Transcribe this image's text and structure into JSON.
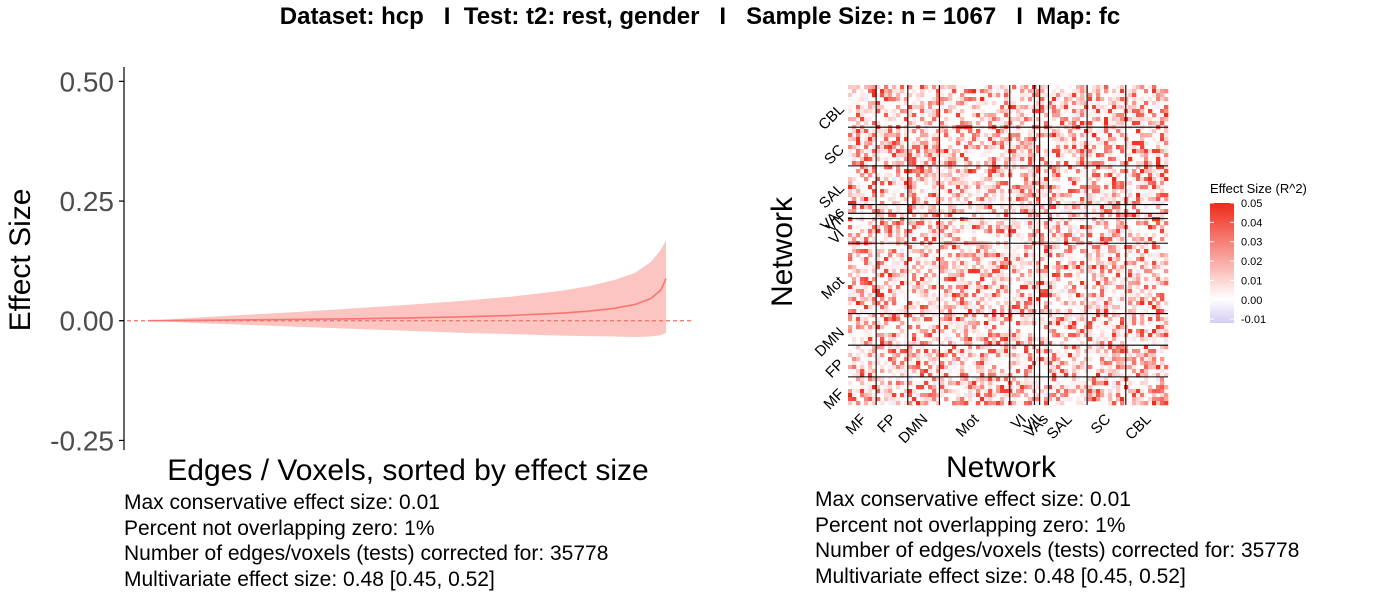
{
  "header": {
    "title": "Dataset: hcp   I  Test: t2: rest, gender   I   Sample Size: n = 1067   I  Map: fc"
  },
  "chart_data": [
    {
      "type": "area",
      "title": "",
      "xlabel": "Edges / Voxels, sorted by effect size",
      "ylabel": "Effect Size",
      "ylim": [
        -0.27,
        0.53
      ],
      "yticks": [
        {
          "value": 0.5,
          "label": "0.50"
        },
        {
          "value": 0.25,
          "label": "0.25"
        },
        {
          "value": 0.0,
          "label": "0.00"
        },
        {
          "value": -0.25,
          "label": "-0.25"
        }
      ],
      "reference_line": {
        "value": 0.0,
        "style": "dashed",
        "color": "#e8736b"
      },
      "colors": {
        "line": "#f8766d",
        "band": "#fcc5c1"
      },
      "x": [
        0,
        0.1,
        0.2,
        0.3,
        0.4,
        0.5,
        0.6,
        0.7,
        0.8,
        0.85,
        0.9,
        0.94,
        0.97,
        0.99,
        1.0
      ],
      "series": [
        {
          "values": [
            0.0,
            0.001,
            0.002,
            0.003,
            0.004,
            0.006,
            0.008,
            0.011,
            0.016,
            0.02,
            0.026,
            0.034,
            0.046,
            0.064,
            0.088
          ]
        }
      ],
      "band": {
        "lower": [
          0.0,
          -0.005,
          -0.009,
          -0.013,
          -0.017,
          -0.021,
          -0.025,
          -0.028,
          -0.031,
          -0.032,
          -0.033,
          -0.034,
          -0.033,
          -0.03,
          -0.025
        ],
        "upper": [
          0.0,
          0.007,
          0.013,
          0.019,
          0.026,
          0.033,
          0.041,
          0.05,
          0.063,
          0.072,
          0.085,
          0.1,
          0.122,
          0.148,
          0.168
        ]
      },
      "stats": [
        "Max conservative effect size: 0.01",
        "Percent not overlapping zero: 1%",
        "Number of edges/voxels (tests) corrected for: 35778",
        "Multivariate effect size: 0.48 [0.45, 0.52]"
      ]
    },
    {
      "type": "heatmap",
      "title": "",
      "xlabel": "Network",
      "ylabel": "Network",
      "networks_x": [
        "MF",
        "FP",
        "DMN",
        "Mot",
        "VI",
        "VII",
        "VAs",
        "SAL",
        "SC",
        "CBL"
      ],
      "networks_y": [
        "MF",
        "FP",
        "DMN",
        "Mot",
        "VI",
        "VII",
        "VAs",
        "SAL",
        "SC",
        "CBL"
      ],
      "network_fraction": [
        0.08,
        0.09,
        0.09,
        0.2,
        0.07,
        0.015,
        0.025,
        0.11,
        0.11,
        0.12
      ],
      "legend": {
        "title": "Effect Size (R^2)",
        "ticks": [
          "0.05",
          "0.04",
          "0.03",
          "0.02",
          "0.01",
          "0.00",
          "-0.01"
        ],
        "range": [
          -0.012,
          0.05
        ],
        "colors": {
          "high": "#ee2a1a",
          "mid": "#ffffff",
          "low": "#d5ccf5"
        }
      },
      "stats": [
        "Max conservative effect size: 0.01",
        "Percent not overlapping zero: 1%",
        "Number of edges/voxels (tests) corrected for: 35778",
        "Multivariate effect size: 0.48 [0.45, 0.52]"
      ]
    }
  ]
}
